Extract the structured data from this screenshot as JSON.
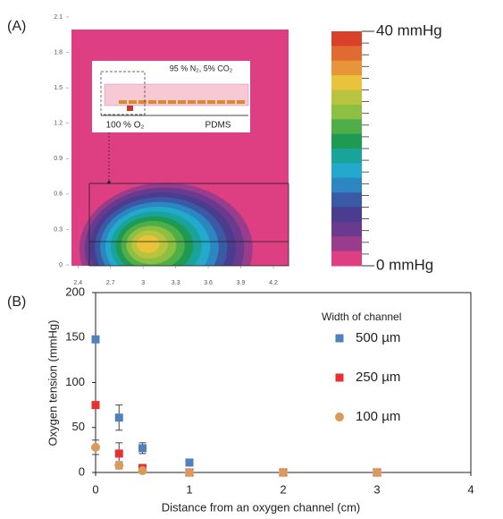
{
  "chart_data": [
    {
      "type": "contour",
      "panel_label": "(A)",
      "xlim": [
        2.34,
        4.34
      ],
      "xticks": [
        2.4,
        2.7,
        3,
        3.3,
        3.6,
        3.9,
        4.2
      ],
      "ylim": [
        0,
        2.1
      ],
      "yticks": [
        0,
        0.3,
        0.6,
        0.9,
        1.2,
        1.5,
        1.8,
        2.1
      ],
      "inset_labels": [
        "95 % N₂, 5% CO₂",
        "100 % O₂",
        "PDMS"
      ],
      "colorbar": {
        "lim": [
          0,
          40
        ],
        "ticks": [
          {
            "value": 0,
            "label": "0 mmHg"
          },
          {
            "value": 40,
            "label": "40 mmHg"
          }
        ],
        "colors": [
          "#d9412b",
          "#e06a2f",
          "#e89438",
          "#e9c43a",
          "#b9c43e",
          "#8dbf43",
          "#4fae48",
          "#1e9a52",
          "#1aa39a",
          "#22a9cc",
          "#2c86c2",
          "#3b5aa6",
          "#4a3c8e",
          "#6a3a8e",
          "#9a3c8c",
          "#dd3f82"
        ]
      }
    },
    {
      "type": "scatter",
      "panel_label": "(B)",
      "x_label": "Distance from an oxygen channel (cm)",
      "y_label": "Oxygen tension (mmHg)",
      "xlim": [
        0,
        4
      ],
      "xticks": [
        0,
        1,
        2,
        3,
        4
      ],
      "ylim": [
        0,
        200
      ],
      "yticks": [
        0,
        50,
        100,
        150,
        200
      ],
      "legend_title": "Width of channel",
      "x": [
        0,
        0.25,
        0.5,
        1,
        2,
        3
      ],
      "series": [
        {
          "name": "500 µm",
          "color": "#4f81bd",
          "marker": "square",
          "values": [
            148,
            61,
            27,
            11,
            0,
            0
          ],
          "errors": [
            null,
            14,
            6,
            null,
            null,
            null
          ]
        },
        {
          "name": "250 µm",
          "color": "#e8312f",
          "marker": "square",
          "values": [
            75,
            21,
            5,
            0,
            0,
            0
          ],
          "errors": [
            null,
            12,
            null,
            null,
            null,
            null
          ]
        },
        {
          "name": "100 µm",
          "color": "#d99a5b",
          "marker": "circle",
          "values": [
            28,
            8,
            2,
            0,
            0,
            0
          ],
          "errors": [
            8,
            4,
            null,
            null,
            null,
            null
          ]
        }
      ]
    }
  ]
}
